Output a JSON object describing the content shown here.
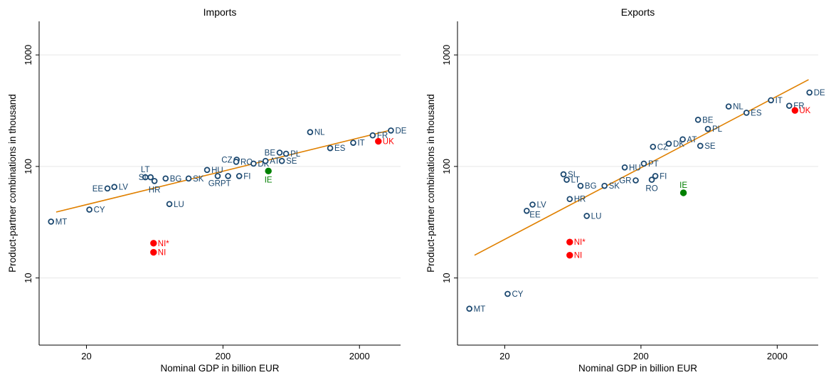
{
  "colors": {
    "point": "#1a476f",
    "uk_ni": "#ff0000",
    "ie": "#008000",
    "fit": "#e08000",
    "grid": "#e6e6e6",
    "axis": "#000000"
  },
  "chart_data": [
    {
      "type": "scatter",
      "title": "Imports",
      "xlabel": "Nominal GDP in billion EUR",
      "ylabel": "Product-partner combinations in thousand",
      "xscale": "log",
      "yscale": "log",
      "xlim": [
        9,
        4000
      ],
      "ylim": [
        2.5,
        2000
      ],
      "xticks": [
        20,
        200,
        2000
      ],
      "xtick_labels": [
        "20",
        "200",
        "2000"
      ],
      "yticks": [
        10,
        100,
        1000
      ],
      "ytick_labels": [
        "10",
        "100",
        "1000"
      ],
      "grid": "horizontal",
      "fit_line": {
        "x": [
          12,
          3300
        ],
        "y": [
          39,
          210
        ]
      },
      "points": [
        {
          "label": "MT",
          "x": 11,
          "y": 32,
          "group": "eu",
          "label_pos": "right"
        },
        {
          "label": "CY",
          "x": 21,
          "y": 41,
          "group": "eu",
          "label_pos": "right"
        },
        {
          "label": "EE",
          "x": 28.5,
          "y": 63.5,
          "group": "eu",
          "label_pos": "left"
        },
        {
          "label": "LV",
          "x": 32,
          "y": 65.5,
          "group": "eu",
          "label_pos": "right"
        },
        {
          "label": "LT",
          "x": 54,
          "y": 80,
          "group": "eu",
          "label_pos": "above"
        },
        {
          "label": "SI",
          "x": 59,
          "y": 80,
          "group": "eu",
          "label_pos": "left"
        },
        {
          "label": "HR",
          "x": 63,
          "y": 74,
          "group": "eu",
          "label_pos": "below"
        },
        {
          "label": "BG",
          "x": 76,
          "y": 78,
          "group": "eu",
          "label_pos": "right"
        },
        {
          "label": "SK",
          "x": 112,
          "y": 78,
          "group": "eu",
          "label_pos": "right"
        },
        {
          "label": "LU",
          "x": 81,
          "y": 46,
          "group": "eu",
          "label_pos": "right"
        },
        {
          "label": "HU",
          "x": 153,
          "y": 93,
          "group": "eu",
          "label_pos": "right"
        },
        {
          "label": "GR",
          "x": 183,
          "y": 82,
          "group": "eu",
          "label_pos": "below-left"
        },
        {
          "label": "PT",
          "x": 218,
          "y": 82,
          "group": "eu",
          "label_pos": "below-left"
        },
        {
          "label": "CZ",
          "x": 252,
          "y": 115,
          "group": "eu",
          "label_pos": "left"
        },
        {
          "label": "RO",
          "x": 250,
          "y": 110,
          "group": "eu",
          "label_pos": "right"
        },
        {
          "label": "FI",
          "x": 263,
          "y": 82,
          "group": "eu",
          "label_pos": "right"
        },
        {
          "label": "DK",
          "x": 335,
          "y": 106,
          "group": "eu",
          "label_pos": "right"
        },
        {
          "label": "AT",
          "x": 410,
          "y": 112,
          "group": "eu",
          "label_pos": "right"
        },
        {
          "label": "BE",
          "x": 520,
          "y": 133,
          "group": "eu",
          "label_pos": "left"
        },
        {
          "label": "PL",
          "x": 580,
          "y": 130,
          "group": "eu",
          "label_pos": "right"
        },
        {
          "label": "SE",
          "x": 540,
          "y": 112,
          "group": "eu",
          "label_pos": "right"
        },
        {
          "label": "NL",
          "x": 870,
          "y": 203,
          "group": "eu",
          "label_pos": "right"
        },
        {
          "label": "ES",
          "x": 1220,
          "y": 146,
          "group": "eu",
          "label_pos": "right"
        },
        {
          "label": "IT",
          "x": 1800,
          "y": 163,
          "group": "eu",
          "label_pos": "right"
        },
        {
          "label": "FR",
          "x": 2500,
          "y": 190,
          "group": "eu",
          "label_pos": "right"
        },
        {
          "label": "DE",
          "x": 3400,
          "y": 210,
          "group": "eu",
          "label_pos": "right"
        },
        {
          "label": "UK",
          "x": 2750,
          "y": 168,
          "group": "uk_ni",
          "label_pos": "right"
        },
        {
          "label": "IE",
          "x": 430,
          "y": 91,
          "group": "ie",
          "label_pos": "below"
        },
        {
          "label": "NI*",
          "x": 62,
          "y": 20.5,
          "group": "uk_ni",
          "label_pos": "right"
        },
        {
          "label": "NI",
          "x": 62,
          "y": 17,
          "group": "uk_ni",
          "label_pos": "right"
        }
      ]
    },
    {
      "type": "scatter",
      "title": "Exports",
      "xlabel": "Nominal GDP in billion EUR",
      "ylabel": "Product-partner combinations in thousand",
      "xscale": "log",
      "yscale": "log",
      "xlim": [
        9,
        4000
      ],
      "ylim": [
        2.5,
        2000
      ],
      "xticks": [
        20,
        200,
        2000
      ],
      "xtick_labels": [
        "20",
        "200",
        "2000"
      ],
      "yticks": [
        10,
        100,
        1000
      ],
      "ytick_labels": [
        "10",
        "100",
        "1000"
      ],
      "grid": "horizontal",
      "fit_line": {
        "x": [
          12,
          3400
        ],
        "y": [
          16,
          600
        ]
      },
      "points": [
        {
          "label": "MT",
          "x": 11,
          "y": 5.3,
          "group": "eu",
          "label_pos": "right"
        },
        {
          "label": "CY",
          "x": 21,
          "y": 7.2,
          "group": "eu",
          "label_pos": "right"
        },
        {
          "label": "EE",
          "x": 29,
          "y": 40,
          "group": "eu",
          "label_pos": "right-below"
        },
        {
          "label": "LV",
          "x": 32,
          "y": 45.5,
          "group": "eu",
          "label_pos": "right"
        },
        {
          "label": "SI",
          "x": 54,
          "y": 85,
          "group": "eu",
          "label_pos": "right"
        },
        {
          "label": "LT",
          "x": 57,
          "y": 76,
          "group": "eu",
          "label_pos": "right"
        },
        {
          "label": "HR",
          "x": 60,
          "y": 51,
          "group": "eu",
          "label_pos": "right"
        },
        {
          "label": "BG",
          "x": 72,
          "y": 67,
          "group": "eu",
          "label_pos": "right"
        },
        {
          "label": "SK",
          "x": 108,
          "y": 67,
          "group": "eu",
          "label_pos": "right"
        },
        {
          "label": "LU",
          "x": 80,
          "y": 36,
          "group": "eu",
          "label_pos": "right"
        },
        {
          "label": "HU",
          "x": 152,
          "y": 98,
          "group": "eu",
          "label_pos": "right"
        },
        {
          "label": "PT",
          "x": 210,
          "y": 106,
          "group": "eu",
          "label_pos": "right"
        },
        {
          "label": "GR",
          "x": 183,
          "y": 75,
          "group": "eu",
          "label_pos": "left"
        },
        {
          "label": "RO",
          "x": 240,
          "y": 76,
          "group": "eu",
          "label_pos": "below"
        },
        {
          "label": "FI",
          "x": 255,
          "y": 82,
          "group": "eu",
          "label_pos": "right"
        },
        {
          "label": "CZ",
          "x": 245,
          "y": 150,
          "group": "eu",
          "label_pos": "right"
        },
        {
          "label": "DK",
          "x": 320,
          "y": 160,
          "group": "eu",
          "label_pos": "right"
        },
        {
          "label": "AT",
          "x": 405,
          "y": 175,
          "group": "eu",
          "label_pos": "right"
        },
        {
          "label": "BE",
          "x": 525,
          "y": 262,
          "group": "eu",
          "label_pos": "right"
        },
        {
          "label": "PL",
          "x": 620,
          "y": 217,
          "group": "eu",
          "label_pos": "right"
        },
        {
          "label": "SE",
          "x": 545,
          "y": 153,
          "group": "eu",
          "label_pos": "right"
        },
        {
          "label": "NL",
          "x": 880,
          "y": 345,
          "group": "eu",
          "label_pos": "right"
        },
        {
          "label": "ES",
          "x": 1190,
          "y": 303,
          "group": "eu",
          "label_pos": "right"
        },
        {
          "label": "IT",
          "x": 1800,
          "y": 392,
          "group": "eu",
          "label_pos": "right"
        },
        {
          "label": "FR",
          "x": 2450,
          "y": 350,
          "group": "eu",
          "label_pos": "right"
        },
        {
          "label": "DE",
          "x": 3450,
          "y": 460,
          "group": "eu",
          "label_pos": "right"
        },
        {
          "label": "UK",
          "x": 2700,
          "y": 318,
          "group": "uk_ni",
          "label_pos": "right"
        },
        {
          "label": "IE",
          "x": 410,
          "y": 58,
          "group": "ie",
          "label_pos": "above"
        },
        {
          "label": "NI*",
          "x": 60,
          "y": 21,
          "group": "uk_ni",
          "label_pos": "right"
        },
        {
          "label": "NI",
          "x": 60,
          "y": 16,
          "group": "uk_ni",
          "label_pos": "right"
        }
      ]
    }
  ]
}
